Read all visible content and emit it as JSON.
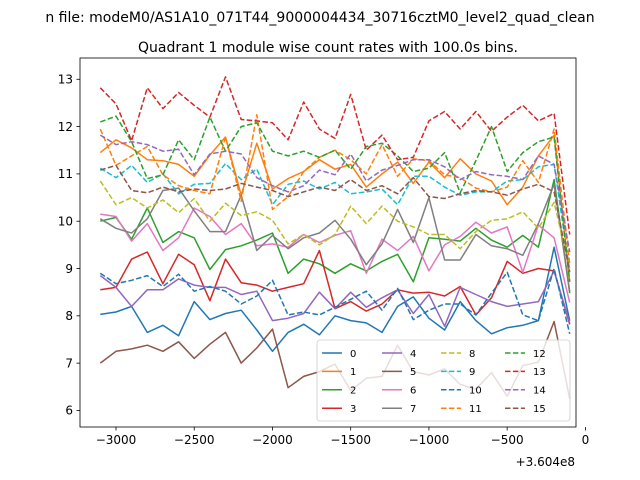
{
  "chart_data": {
    "type": "line",
    "suptitle": "n file: modeM0/AS1A10_071T44_9000004434_30716cztM0_level2_quad_clean",
    "title": "Quadrant 1 module wise count rates with 100.0s bins.",
    "xlabel": "",
    "ylabel": "",
    "x_offset_label": "+3.604e8",
    "xlim": [
      -3230,
      -60
    ],
    "ylim": [
      5.65,
      13.45
    ],
    "xticks": [
      -3000,
      -2500,
      -2000,
      -1500,
      -1000,
      -500,
      0
    ],
    "xtick_labels": [
      "−3000",
      "−2500",
      "−2000",
      "−1500",
      "−1000",
      "−500",
      "0"
    ],
    "yticks": [
      6,
      7,
      8,
      9,
      10,
      11,
      12,
      13
    ],
    "ytick_labels": [
      "6",
      "7",
      "8",
      "9",
      "10",
      "11",
      "12",
      "13"
    ],
    "grid": false,
    "legend_position": "lower-right",
    "legend_columns": 4,
    "x": [
      -3100,
      -3000,
      -2900,
      -2800,
      -2700,
      -2600,
      -2500,
      -2400,
      -2300,
      -2200,
      -2100,
      -2000,
      -1900,
      -1800,
      -1700,
      -1600,
      -1500,
      -1400,
      -1300,
      -1200,
      -1100,
      -1000,
      -900,
      -800,
      -700,
      -600,
      -500,
      -400,
      -300,
      -200,
      -100
    ],
    "series": [
      {
        "name": "0",
        "color": "#1f77b4",
        "dash": "solid",
        "values": [
          8.03,
          8.08,
          8.2,
          7.65,
          7.8,
          7.58,
          8.3,
          7.92,
          8.05,
          8.12,
          7.7,
          7.25,
          7.65,
          7.82,
          7.6,
          8.0,
          7.9,
          7.85,
          7.65,
          8.2,
          8.4,
          7.95,
          7.7,
          8.3,
          7.9,
          7.62,
          7.75,
          7.8,
          7.9,
          9.45,
          7.9
        ]
      },
      {
        "name": "1",
        "color": "#ff7f0e",
        "dash": "solid",
        "values": [
          11.45,
          11.72,
          11.55,
          11.3,
          11.28,
          11.2,
          10.95,
          11.4,
          11.78,
          10.55,
          11.65,
          10.68,
          10.9,
          11.05,
          11.3,
          11.1,
          11.2,
          10.72,
          11.0,
          11.25,
          10.8,
          11.25,
          10.92,
          11.32,
          11.0,
          10.85,
          10.35,
          10.72,
          11.38,
          11.82,
          8.72
        ]
      },
      {
        "name": "2",
        "color": "#2ca02c",
        "dash": "solid",
        "values": [
          10.0,
          10.08,
          9.62,
          10.28,
          9.55,
          9.78,
          9.65,
          8.98,
          9.4,
          9.48,
          9.6,
          9.75,
          8.9,
          9.2,
          9.1,
          8.9,
          9.1,
          8.95,
          9.15,
          9.3,
          8.72,
          9.65,
          9.62,
          9.58,
          9.85,
          9.6,
          9.45,
          9.7,
          9.45,
          10.88,
          8.48
        ]
      },
      {
        "name": "3",
        "color": "#d62728",
        "dash": "solid",
        "values": [
          8.55,
          8.6,
          9.2,
          9.35,
          8.68,
          9.3,
          9.08,
          8.32,
          9.2,
          8.7,
          8.65,
          8.52,
          8.6,
          8.68,
          9.38,
          8.15,
          8.3,
          8.1,
          8.25,
          8.55,
          8.48,
          8.5,
          8.42,
          8.62,
          8.02,
          8.38,
          9.15,
          8.9,
          9.0,
          8.95,
          7.82
        ]
      },
      {
        "name": "4",
        "color": "#9467bd",
        "dash": "solid",
        "values": [
          8.85,
          8.6,
          8.2,
          8.55,
          8.55,
          8.78,
          8.65,
          8.6,
          8.6,
          8.45,
          8.52,
          7.9,
          7.95,
          8.05,
          8.5,
          8.15,
          8.5,
          8.18,
          8.38,
          8.55,
          8.05,
          8.45,
          7.78,
          8.6,
          8.45,
          8.3,
          8.2,
          8.25,
          8.3,
          8.95,
          7.85
        ]
      },
      {
        "name": "5",
        "color": "#8c564b",
        "dash": "solid",
        "values": [
          7.0,
          7.25,
          7.3,
          7.38,
          7.25,
          7.45,
          7.1,
          7.4,
          7.65,
          7.0,
          7.32,
          7.72,
          6.48,
          6.72,
          6.82,
          6.98,
          6.42,
          6.68,
          6.72,
          7.38,
          6.82,
          6.75,
          6.88,
          6.55,
          6.45,
          6.8,
          6.3,
          6.95,
          7.02,
          7.88,
          6.25
        ]
      },
      {
        "name": "6",
        "color": "#e377c2",
        "dash": "solid",
        "values": [
          10.15,
          10.1,
          9.58,
          9.95,
          9.38,
          9.65,
          10.28,
          10.1,
          9.72,
          9.95,
          9.48,
          9.52,
          9.45,
          9.72,
          9.55,
          9.7,
          9.8,
          8.9,
          9.62,
          9.38,
          9.68,
          8.95,
          9.5,
          9.68,
          9.98,
          9.75,
          9.88,
          8.92,
          9.92,
          9.65,
          8.28
        ]
      },
      {
        "name": "7",
        "color": "#7f7f7f",
        "dash": "solid",
        "values": [
          10.05,
          9.85,
          9.75,
          10.05,
          10.65,
          10.7,
          10.22,
          9.78,
          9.78,
          10.55,
          9.38,
          9.7,
          9.42,
          9.65,
          9.75,
          10.02,
          9.62,
          9.08,
          9.52,
          10.25,
          9.55,
          10.5,
          9.18,
          9.18,
          9.72,
          9.48,
          9.42,
          9.28,
          9.95,
          10.78,
          8.52
        ]
      },
      {
        "name": "8",
        "color": "#bcbd22",
        "dash": "dashed",
        "values": [
          10.85,
          10.35,
          10.5,
          10.28,
          10.45,
          10.18,
          10.48,
          10.0,
          10.38,
          10.12,
          10.2,
          10.02,
          9.52,
          9.72,
          9.5,
          9.72,
          10.32,
          9.95,
          10.32,
          10.0,
          9.88,
          9.72,
          9.72,
          9.42,
          9.78,
          10.02,
          10.05,
          10.2,
          9.85,
          10.4,
          9.0
        ]
      },
      {
        "name": "9",
        "color": "#17becf",
        "dash": "dashed",
        "values": [
          11.12,
          10.92,
          11.18,
          10.82,
          11.0,
          10.58,
          10.78,
          10.8,
          11.22,
          10.88,
          11.1,
          10.35,
          10.78,
          10.85,
          10.68,
          10.82,
          10.58,
          10.62,
          10.68,
          10.35,
          10.95,
          10.95,
          10.72,
          10.55,
          10.62,
          10.62,
          10.85,
          10.88,
          11.15,
          11.2,
          8.95
        ]
      },
      {
        "name": "10",
        "color": "#1f77b4",
        "dash": "dashed",
        "values": [
          8.9,
          8.68,
          8.75,
          8.85,
          8.62,
          8.88,
          8.52,
          8.62,
          8.52,
          8.25,
          8.42,
          8.75,
          8.02,
          8.08,
          8.02,
          8.18,
          8.35,
          8.52,
          8.12,
          8.58,
          7.92,
          8.12,
          8.25,
          8.25,
          8.02,
          8.48,
          8.92,
          8.02,
          7.9,
          9.0,
          7.62
        ]
      },
      {
        "name": "11",
        "color": "#ff7f0e",
        "dash": "dashed",
        "values": [
          11.95,
          11.18,
          11.38,
          11.58,
          10.98,
          10.75,
          10.65,
          10.58,
          11.78,
          10.42,
          12.25,
          10.25,
          10.52,
          11.05,
          11.35,
          11.5,
          11.3,
          11.0,
          11.62,
          10.95,
          11.32,
          11.28,
          10.98,
          10.92,
          10.7,
          10.62,
          10.72,
          11.28,
          10.82,
          11.95,
          9.1
        ]
      },
      {
        "name": "12",
        "color": "#2ca02c",
        "dash": "dashed",
        "values": [
          12.1,
          12.22,
          11.68,
          10.9,
          10.98,
          11.72,
          11.3,
          12.2,
          11.48,
          12.0,
          12.08,
          11.48,
          11.38,
          11.48,
          11.35,
          11.5,
          11.1,
          11.58,
          11.65,
          11.38,
          11.05,
          11.12,
          11.45,
          10.6,
          11.28,
          12.0,
          11.05,
          11.45,
          11.68,
          11.78,
          8.72
        ]
      },
      {
        "name": "13",
        "color": "#d62728",
        "dash": "dashed",
        "values": [
          12.82,
          12.48,
          11.7,
          12.82,
          12.38,
          12.72,
          12.45,
          12.2,
          13.05,
          12.15,
          12.12,
          12.08,
          11.72,
          12.52,
          11.95,
          11.75,
          12.68,
          11.5,
          11.82,
          11.3,
          11.35,
          12.12,
          12.32,
          11.95,
          12.32,
          11.9,
          12.2,
          12.45,
          12.12,
          12.28,
          9.72
        ]
      },
      {
        "name": "14",
        "color": "#9467bd",
        "dash": "dashed",
        "values": [
          11.82,
          11.62,
          11.68,
          11.62,
          11.48,
          11.52,
          10.98,
          11.42,
          11.48,
          11.42,
          10.92,
          10.75,
          10.62,
          10.75,
          11.08,
          10.98,
          11.42,
          10.85,
          11.08,
          11.18,
          11.3,
          11.3,
          11.15,
          10.88,
          11.05,
          10.98,
          10.95,
          10.88,
          11.38,
          11.2,
          9.35
        ]
      },
      {
        "name": "15",
        "color": "#8c564b",
        "dash": "dashed",
        "values": [
          11.08,
          11.18,
          10.65,
          10.6,
          10.72,
          10.62,
          10.68,
          10.65,
          10.68,
          10.8,
          10.72,
          10.65,
          10.52,
          10.62,
          10.72,
          10.65,
          10.88,
          10.65,
          10.75,
          10.58,
          10.92,
          10.52,
          10.48,
          10.58,
          10.65,
          10.62,
          10.55,
          10.68,
          10.78,
          10.62,
          8.92
        ]
      }
    ]
  }
}
